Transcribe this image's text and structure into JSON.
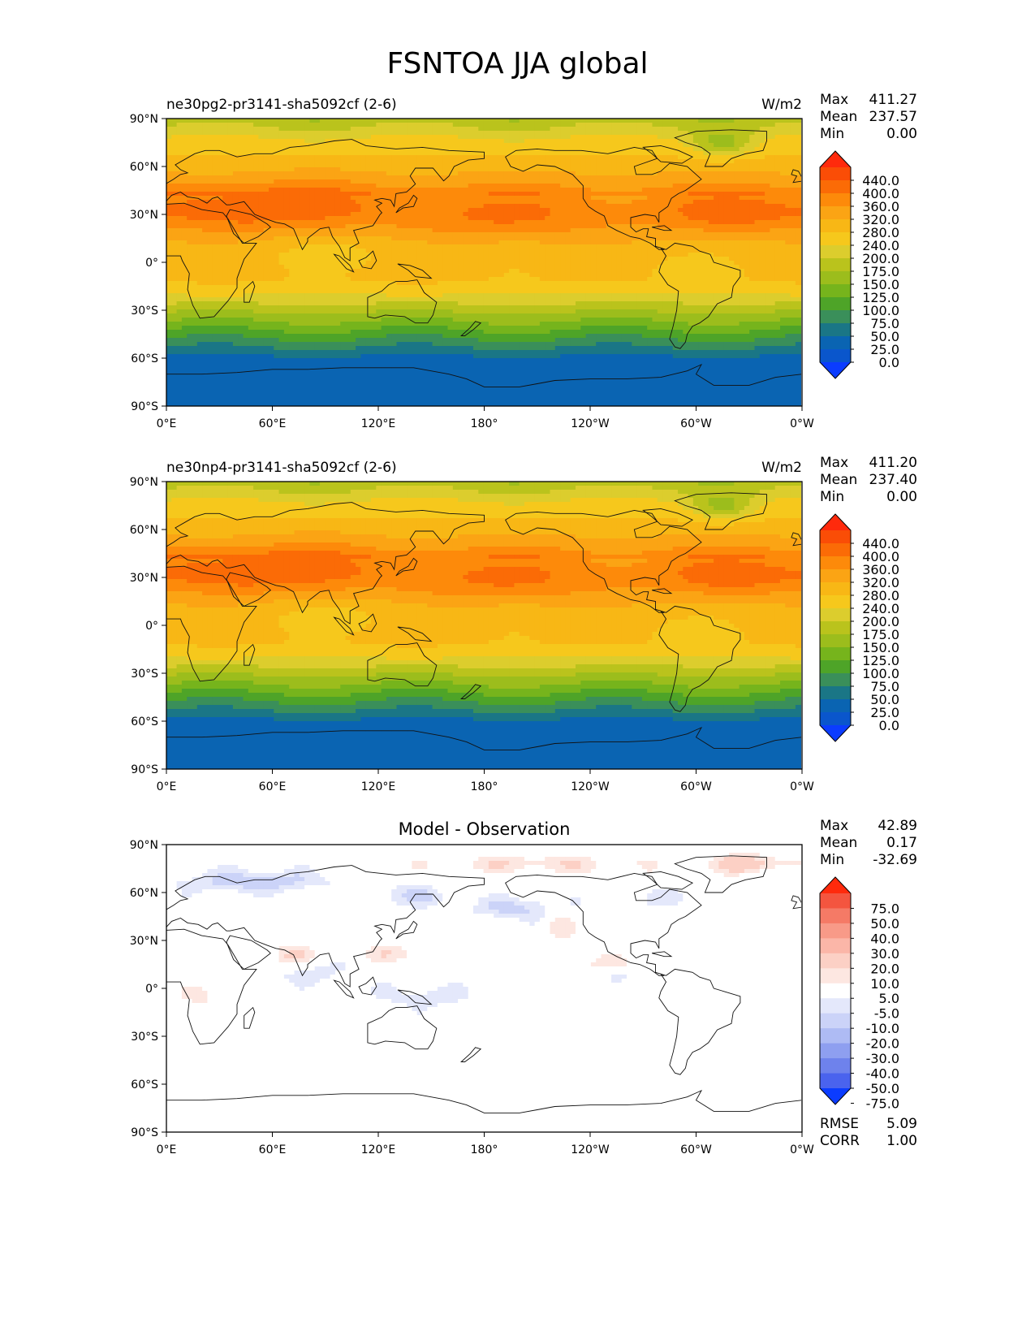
{
  "figure": {
    "title": "FSNTOA JJA global"
  },
  "chart_data": [
    {
      "type": "heatmap",
      "title": "ne30pg2-pr3141-sha5092cf (2-6)",
      "units": "W/m2",
      "stats": [
        {
          "label": "Max",
          "value": "411.27"
        },
        {
          "label": "Mean",
          "value": "237.57"
        },
        {
          "label": "Min",
          "value": "0.00"
        }
      ],
      "x_ticks": [
        "0°E",
        "60°E",
        "120°E",
        "180°",
        "120°W",
        "60°W",
        "0°W"
      ],
      "y_ticks": [
        "90°N",
        "60°N",
        "30°N",
        "0°",
        "30°S",
        "60°S",
        "90°S"
      ],
      "xlim": [
        0,
        360
      ],
      "ylim": [
        -90,
        90
      ],
      "colorbar": {
        "extend": "both",
        "levels": [
          "440.0",
          "400.0",
          "360.0",
          "320.0",
          "280.0",
          "240.0",
          "200.0",
          "175.0",
          "150.0",
          "125.0",
          "100.0",
          "75.0",
          "50.0",
          "25.0",
          "0.0"
        ],
        "colors": [
          "#ff2a0c",
          "#fa4d06",
          "#fb6b06",
          "#fd8a0a",
          "#fba414",
          "#f8b715",
          "#f6c81c",
          "#dccd2d",
          "#bac31c",
          "#9cbd1c",
          "#76b41c",
          "#4ea428",
          "#3a8f5a",
          "#1a7686",
          "#0a64b2",
          "#0a56cc",
          "#0b3cff"
        ]
      }
    },
    {
      "type": "heatmap",
      "title": "ne30np4-pr3141-sha5092cf (2-6)",
      "units": "W/m2",
      "stats": [
        {
          "label": "Max",
          "value": "411.20"
        },
        {
          "label": "Mean",
          "value": "237.40"
        },
        {
          "label": "Min",
          "value": "0.00"
        }
      ],
      "x_ticks": [
        "0°E",
        "60°E",
        "120°E",
        "180°",
        "120°W",
        "60°W",
        "0°W"
      ],
      "y_ticks": [
        "90°N",
        "60°N",
        "30°N",
        "0°",
        "30°S",
        "60°S",
        "90°S"
      ],
      "xlim": [
        0,
        360
      ],
      "ylim": [
        -90,
        90
      ],
      "colorbar": {
        "extend": "both",
        "levels": [
          "440.0",
          "400.0",
          "360.0",
          "320.0",
          "280.0",
          "240.0",
          "200.0",
          "175.0",
          "150.0",
          "125.0",
          "100.0",
          "75.0",
          "50.0",
          "25.0",
          "0.0"
        ],
        "colors": [
          "#ff2a0c",
          "#fa4d06",
          "#fb6b06",
          "#fd8a0a",
          "#fba414",
          "#f8b715",
          "#f6c81c",
          "#dccd2d",
          "#bac31c",
          "#9cbd1c",
          "#76b41c",
          "#4ea428",
          "#3a8f5a",
          "#1a7686",
          "#0a64b2",
          "#0a56cc",
          "#0b3cff"
        ]
      }
    },
    {
      "type": "heatmap",
      "title": "Model - Observation",
      "units": "",
      "stats": [
        {
          "label": "Max",
          "value": "42.89"
        },
        {
          "label": "Mean",
          "value": "0.17"
        },
        {
          "label": "Min",
          "value": "-32.69"
        }
      ],
      "extra_stats": [
        {
          "label": "RMSE",
          "value": "5.09"
        },
        {
          "label": "CORR",
          "value": "1.00"
        }
      ],
      "x_ticks": [
        "0°E",
        "60°E",
        "120°E",
        "180°",
        "120°W",
        "60°W",
        "0°W"
      ],
      "y_ticks": [
        "90°N",
        "60°N",
        "30°N",
        "0°",
        "30°S",
        "60°S",
        "90°S"
      ],
      "xlim": [
        0,
        360
      ],
      "ylim": [
        -90,
        90
      ],
      "colorbar": {
        "extend": "both",
        "levels": [
          "75.0",
          "50.0",
          "40.0",
          "30.0",
          "20.0",
          "10.0",
          "5.0",
          "-5.0",
          "-10.0",
          "-20.0",
          "-30.0",
          "-40.0",
          "-50.0",
          "-75.0"
        ],
        "colors": [
          "#ff2a0c",
          "#f4553f",
          "#f57a66",
          "#f89a88",
          "#fbb6a8",
          "#fcd0c5",
          "#fde7e1",
          "#ffffff",
          "#e4e8fb",
          "#cbd3f8",
          "#aebbf4",
          "#8e9ff0",
          "#6e82ec",
          "#4a63ee",
          "#0b3cff"
        ]
      }
    }
  ]
}
